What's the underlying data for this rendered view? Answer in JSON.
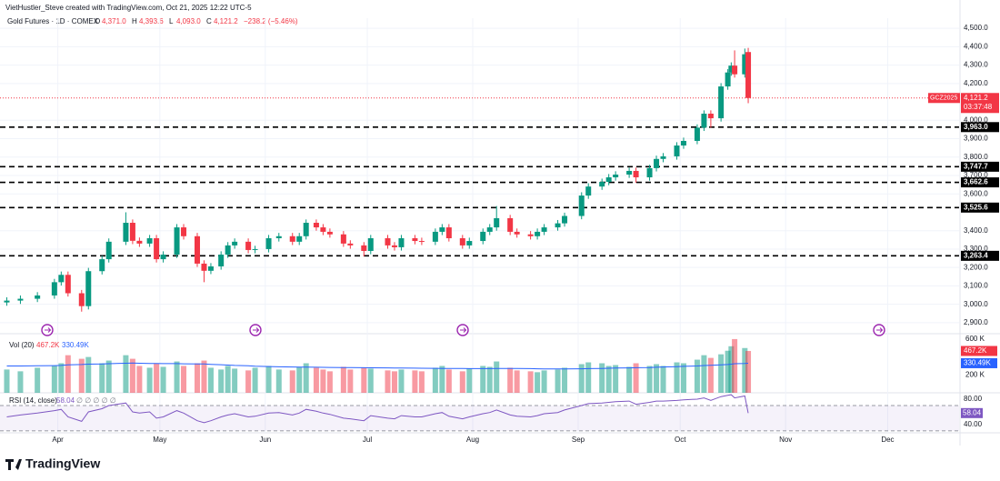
{
  "chart_data": {
    "type": "candlestick",
    "title": "VietHustler_Steve created with TradingView.com, Oct 21, 2025 12:22 UTC-5",
    "symbol": "Gold Futures · 1D · COMEX",
    "header_ohlc": [
      {
        "key": "O",
        "value": 4371.0,
        "label": "4,371.0"
      },
      {
        "key": "H",
        "value": 4393.6,
        "label": "4,393.6"
      },
      {
        "key": "L",
        "value": 4093.0,
        "label": "4,093.0"
      },
      {
        "key": "C",
        "value": 4121.2,
        "label": "4,121.2"
      }
    ],
    "change": {
      "value": -238.2,
      "label": "−238.2 (−5.46%)"
    },
    "x": [
      "2025-03-17",
      "2025-03-21",
      "2025-03-26",
      "2025-03-31",
      "2025-04-02",
      "2025-04-04",
      "2025-04-08",
      "2025-04-10",
      "2025-04-14",
      "2025-04-16",
      "2025-04-21",
      "2025-04-23",
      "2025-04-25",
      "2025-04-28",
      "2025-04-30",
      "2025-05-02",
      "2025-05-06",
      "2025-05-08",
      "2025-05-12",
      "2025-05-14",
      "2025-05-16",
      "2025-05-19",
      "2025-05-21",
      "2025-05-23",
      "2025-05-27",
      "2025-05-29",
      "2025-06-02",
      "2025-06-05",
      "2025-06-09",
      "2025-06-11",
      "2025-06-13",
      "2025-06-16",
      "2025-06-18",
      "2025-06-20",
      "2025-06-24",
      "2025-06-26",
      "2025-06-30",
      "2025-07-02",
      "2025-07-07",
      "2025-07-09",
      "2025-07-11",
      "2025-07-15",
      "2025-07-17",
      "2025-07-21",
      "2025-07-23",
      "2025-07-25",
      "2025-07-29",
      "2025-07-31",
      "2025-08-04",
      "2025-08-06",
      "2025-08-08",
      "2025-08-12",
      "2025-08-14",
      "2025-08-18",
      "2025-08-20",
      "2025-08-22",
      "2025-08-26",
      "2025-08-28",
      "2025-09-02",
      "2025-09-04",
      "2025-09-08",
      "2025-09-10",
      "2025-09-12",
      "2025-09-16",
      "2025-09-18",
      "2025-09-22",
      "2025-09-24",
      "2025-09-26",
      "2025-09-30",
      "2025-10-02",
      "2025-10-06",
      "2025-10-08",
      "2025-10-10",
      "2025-10-13",
      "2025-10-15",
      "2025-10-16",
      "2025-10-17",
      "2025-10-20",
      "2025-10-21"
    ],
    "open": [
      3010,
      3020,
      3030,
      3048,
      3120,
      3160,
      3060,
      2990,
      3180,
      3245,
      3340,
      3443,
      3345,
      3330,
      3359,
      3245,
      3270,
      3418,
      3370,
      3221,
      3182,
      3206,
      3270,
      3320,
      3340,
      3295,
      3300,
      3359,
      3370,
      3340,
      3370,
      3443,
      3418,
      3394,
      3380,
      3330,
      3320,
      3290,
      3359,
      3320,
      3310,
      3359,
      3344,
      3340,
      3394,
      3418,
      3359,
      3320,
      3344,
      3394,
      3418,
      3468,
      3394,
      3380,
      3370,
      3394,
      3418,
      3440,
      3480,
      3591,
      3640,
      3665,
      3690,
      3705,
      3725,
      3690,
      3740,
      3790,
      3804,
      3863,
      3888,
      3960,
      4036,
      4011,
      4184,
      4260,
      4297,
      4250,
      4371
    ],
    "high": [
      3038,
      3048,
      3066,
      3138,
      3178,
      3178,
      3078,
      3198,
      3263,
      3358,
      3500,
      3461,
      3363,
      3377,
      3377,
      3288,
      3436,
      3436,
      3388,
      3239,
      3224,
      3288,
      3338,
      3358,
      3358,
      3318,
      3377,
      3388,
      3388,
      3388,
      3461,
      3461,
      3436,
      3412,
      3398,
      3348,
      3338,
      3377,
      3377,
      3338,
      3377,
      3377,
      3362,
      3412,
      3436,
      3436,
      3377,
      3362,
      3412,
      3436,
      3534,
      3486,
      3412,
      3398,
      3412,
      3436,
      3458,
      3498,
      3609,
      3658,
      3683,
      3708,
      3723,
      3743,
      3743,
      3758,
      3808,
      3822,
      3881,
      3906,
      3978,
      4054,
      4054,
      4202,
      4278,
      4315,
      4380,
      4390,
      4393.6
    ],
    "low": [
      2992,
      3002,
      3012,
      3030,
      3102,
      3042,
      2960,
      2972,
      3162,
      3227,
      3322,
      3327,
      3312,
      3312,
      3227,
      3227,
      3252,
      3352,
      3203,
      3120,
      3164,
      3188,
      3252,
      3302,
      3277,
      3277,
      3282,
      3341,
      3322,
      3322,
      3352,
      3400,
      3376,
      3362,
      3312,
      3302,
      3260,
      3272,
      3302,
      3292,
      3292,
      3326,
      3322,
      3322,
      3376,
      3341,
      3302,
      3302,
      3326,
      3376,
      3400,
      3376,
      3362,
      3352,
      3352,
      3376,
      3400,
      3422,
      3462,
      3573,
      3622,
      3647,
      3672,
      3687,
      3660,
      3672,
      3722,
      3772,
      3786,
      3845,
      3870,
      3942,
      3960,
      3993,
      4166,
      4242,
      4232,
      4232,
      4093
    ],
    "close": [
      3020,
      3030,
      3048,
      3120,
      3160,
      3060,
      2990,
      3180,
      3245,
      3340,
      3443,
      3345,
      3330,
      3359,
      3245,
      3270,
      3418,
      3370,
      3221,
      3182,
      3206,
      3270,
      3320,
      3340,
      3295,
      3300,
      3359,
      3370,
      3340,
      3370,
      3443,
      3418,
      3394,
      3380,
      3330,
      3320,
      3290,
      3359,
      3320,
      3310,
      3359,
      3344,
      3340,
      3394,
      3418,
      3359,
      3320,
      3344,
      3394,
      3418,
      3468,
      3394,
      3380,
      3370,
      3394,
      3418,
      3440,
      3480,
      3591,
      3640,
      3665,
      3690,
      3705,
      3725,
      3690,
      3740,
      3790,
      3804,
      3863,
      3888,
      3960,
      4036,
      4011,
      4184,
      4260,
      4297,
      4250,
      4359,
      4121.2
    ],
    "colors": {
      "up": "#089981",
      "down": "#f23645"
    },
    "xlim": [
      "2025-03-15",
      "2025-12-22"
    ],
    "xticks": [
      {
        "value": "2025-04-01",
        "label": "Apr"
      },
      {
        "value": "2025-05-01",
        "label": "May"
      },
      {
        "value": "2025-06-01",
        "label": "Jun"
      },
      {
        "value": "2025-07-01",
        "label": "Jul"
      },
      {
        "value": "2025-08-01",
        "label": "Aug"
      },
      {
        "value": "2025-09-01",
        "label": "Sep"
      },
      {
        "value": "2025-10-01",
        "label": "Oct"
      },
      {
        "value": "2025-11-01",
        "label": "Nov"
      },
      {
        "value": "2025-12-01",
        "label": "Dec"
      }
    ],
    "ylim": [
      2850,
      4555
    ],
    "yticks": [
      {
        "value": 4500,
        "label": "4,500.0"
      },
      {
        "value": 4400,
        "label": "4,400.0"
      },
      {
        "value": 4300,
        "label": "4,300.0"
      },
      {
        "value": 4200,
        "label": "4,200.0"
      },
      {
        "value": 4000,
        "label": "4,000.0"
      },
      {
        "value": 3900,
        "label": "3,900.0"
      },
      {
        "value": 3800,
        "label": "3,800.0"
      },
      {
        "value": 3700,
        "label": "3,700.0"
      },
      {
        "value": 3600,
        "label": "3,600.0"
      },
      {
        "value": 3400,
        "label": "3,400.0"
      },
      {
        "value": 3300,
        "label": "3,300.0"
      },
      {
        "value": 3200,
        "label": "3,200.0"
      },
      {
        "value": 3100,
        "label": "3,100.0"
      },
      {
        "value": 3000,
        "label": "3,000.0"
      },
      {
        "value": 2900,
        "label": "2,900.0"
      }
    ],
    "levels": [
      {
        "value": 3963.0,
        "label": "3,963.0"
      },
      {
        "value": 3747.7,
        "label": "3,747.7"
      },
      {
        "value": 3662.6,
        "label": "3,662.6"
      },
      {
        "value": 3525.6,
        "label": "3,525.6"
      },
      {
        "value": 3263.4,
        "label": "3,263.4"
      }
    ],
    "last_price": {
      "symbol": "GCZ2025",
      "value": 4121.2,
      "label": "4,121.2",
      "countdown": "03:37:48"
    },
    "volume": {
      "name": "Vol (20)",
      "values": [
        260000,
        240000,
        280000,
        300000,
        330000,
        420000,
        380000,
        400000,
        330000,
        360000,
        420000,
        380000,
        300000,
        280000,
        330000,
        290000,
        350000,
        300000,
        330000,
        360000,
        280000,
        260000,
        300000,
        270000,
        250000,
        280000,
        300000,
        260000,
        250000,
        290000,
        330000,
        280000,
        260000,
        240000,
        290000,
        260000,
        280000,
        270000,
        250000,
        240000,
        260000,
        250000,
        240000,
        280000,
        300000,
        260000,
        240000,
        270000,
        300000,
        290000,
        350000,
        280000,
        250000,
        240000,
        230000,
        250000,
        260000,
        280000,
        320000,
        340000,
        330000,
        300000,
        310000,
        290000,
        330000,
        300000,
        320000,
        300000,
        340000,
        330000,
        370000,
        420000,
        390000,
        430000,
        470000,
        520000,
        600000,
        500000,
        467200
      ],
      "ma": [
        300000,
        300000,
        302000,
        304000,
        306000,
        312000,
        316000,
        320000,
        322000,
        325000,
        330000,
        332000,
        330000,
        328000,
        328000,
        326000,
        326000,
        324000,
        322000,
        322000,
        318000,
        314000,
        310000,
        306000,
        302000,
        298000,
        294000,
        290000,
        288000,
        286000,
        286000,
        285000,
        284000,
        283000,
        282000,
        281000,
        280000,
        279000,
        278000,
        277000,
        276000,
        275000,
        274000,
        273000,
        272000,
        272000,
        271000,
        270000,
        270000,
        270000,
        272000,
        272000,
        271000,
        270000,
        268000,
        267000,
        266000,
        266000,
        268000,
        270000,
        272000,
        274000,
        276000,
        278000,
        280000,
        282000,
        285000,
        288000,
        292000,
        296000,
        300000,
        305000,
        308000,
        312000,
        316000,
        320000,
        325000,
        328000,
        330490
      ],
      "ma_color": "#2962ff",
      "last_label": {
        "value": 467200,
        "label": "467.2K"
      },
      "ma_label": {
        "value": 330490,
        "label": "330.49K"
      },
      "ylim": [
        0,
        650000
      ],
      "yticks": [
        {
          "value": 600000,
          "label": "600 K"
        },
        {
          "value": 200000,
          "label": "200 K"
        }
      ]
    },
    "rsi": {
      "name": "RSI (14, close)",
      "values": [
        52,
        55,
        58,
        62,
        64,
        52,
        45,
        60,
        65,
        70,
        74,
        60,
        58,
        60,
        50,
        52,
        62,
        58,
        46,
        43,
        46,
        52,
        55,
        57,
        52,
        53,
        58,
        59,
        55,
        58,
        64,
        61,
        58,
        56,
        50,
        49,
        46,
        54,
        50,
        49,
        54,
        52,
        52,
        57,
        59,
        53,
        49,
        52,
        57,
        59,
        63,
        55,
        53,
        52,
        54,
        57,
        59,
        63,
        70,
        73,
        74,
        75,
        76,
        77,
        72,
        75,
        77,
        77,
        78,
        79,
        80,
        82,
        78,
        84,
        86,
        87,
        82,
        85,
        58.04
      ],
      "color": "#7e57c2",
      "last_label": {
        "value": 58.04,
        "label": "58.04"
      },
      "extra": "∅ ∅ ∅ ∅ ∅",
      "bands": [
        70,
        30
      ],
      "ylim": [
        27,
        90
      ],
      "yticks": [
        {
          "value": 80,
          "label": "80.00"
        },
        {
          "value": 40,
          "label": "40.00"
        }
      ]
    },
    "footer": "TradingView"
  }
}
